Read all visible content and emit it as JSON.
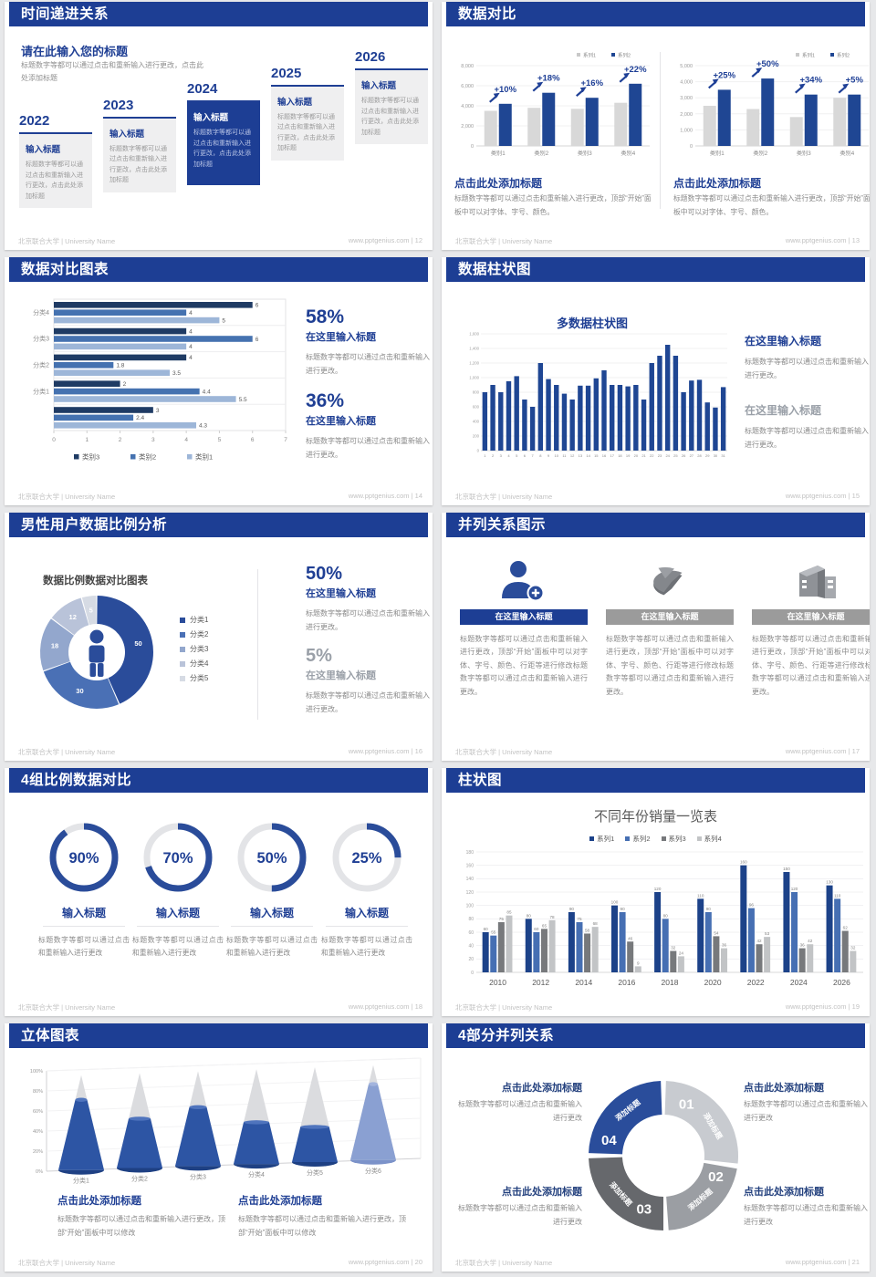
{
  "palette": {
    "header_blue": "#1d3e94",
    "accent_blue": "#1f3f94",
    "bar_dark_blue": "#1f4693",
    "bar_medium_blue": "#4572b0",
    "bar_light_blue": "#9db6d8",
    "bar_gray": "#d8d8d8",
    "text_gray": "#8a8a8a"
  },
  "footer": {
    "left": "北京联合大学 | University Name",
    "site": "www.pptgenius.com",
    "sep": "|"
  },
  "slides": [
    {
      "title": "时间递进关系",
      "page": "12",
      "heading": "请在此输入您的标题",
      "intro": "标题数字等都可以通过点击和重新输入进行更改，点击此处添加标题",
      "items": [
        {
          "year": "2022",
          "title": "输入标题",
          "body": "标题数字等都可以通过点击和重新输入进行更改，点击此处添加标题",
          "highlight": false
        },
        {
          "year": "2023",
          "title": "输入标题",
          "body": "标题数字等都可以通过点击和重新输入进行更改，点击此处添加标题",
          "highlight": false
        },
        {
          "year": "2024",
          "title": "输入标题",
          "body": "标题数字等都可以通过点击和重新输入进行更改，点击此处添加标题",
          "highlight": true
        },
        {
          "year": "2025",
          "title": "输入标题",
          "body": "标题数字等都可以通过点击和重新输入进行更改，点击此处添加标题",
          "highlight": false
        },
        {
          "year": "2026",
          "title": "输入标题",
          "body": "标题数字等都可以通过点击和重新输入进行更改，点击此处添加标题",
          "highlight": false
        }
      ]
    },
    {
      "title": "数据对比",
      "page": "13",
      "chart_data": [
        {
          "type": "bar",
          "legend": [
            "系列1",
            "系列2"
          ],
          "categories": [
            "类别1",
            "类别2",
            "类别3",
            "类别4"
          ],
          "ymax": 8000,
          "yticks": [
            "0",
            "2,000",
            "4,000",
            "6,000",
            "8,000"
          ],
          "series": [
            {
              "name": "系列1",
              "values": [
                3500,
                3800,
                3700,
                4300
              ]
            },
            {
              "name": "系列2",
              "values": [
                4200,
                5300,
                4800,
                6200
              ]
            }
          ],
          "labels": [
            "+10%",
            "+18%",
            "+16%",
            "+22%"
          ]
        },
        {
          "type": "bar",
          "legend": [
            "系列1",
            "系列2"
          ],
          "categories": [
            "类别1",
            "类别2",
            "类别3",
            "类别4"
          ],
          "ymax": 5000,
          "yticks": [
            "0",
            "1,000",
            "2,000",
            "3,000",
            "4,000",
            "5,000"
          ],
          "series": [
            {
              "name": "系列1",
              "values": [
                2500,
                2300,
                1800,
                3000
              ]
            },
            {
              "name": "系列2",
              "values": [
                3500,
                4200,
                3200,
                3200
              ]
            }
          ],
          "labels": [
            "+25%",
            "+50%",
            "+34%",
            "+5%"
          ]
        }
      ],
      "blocks": [
        {
          "heading": "点击此处添加标题",
          "body": "标题数字等都可以通过点击和重新输入进行更改，顶部“开始”面板中可以对字体、字号、颜色。"
        },
        {
          "heading": "点击此处添加标题",
          "body": "标题数字等都可以通过点击和重新输入进行更改，顶部“开始”面板中可以对字体、字号、颜色。"
        }
      ]
    },
    {
      "title": "数据对比图表",
      "page": "14",
      "chart_data": {
        "type": "bar",
        "orientation": "horizontal",
        "categories": [
          "分类4",
          "分类3",
          "分类2",
          "分类1",
          ""
        ],
        "legend": [
          "类别3",
          "类别2",
          "类别1"
        ],
        "values": [
          [
            6,
            4,
            5
          ],
          [
            4,
            6,
            4
          ],
          [
            4,
            1.8,
            3.5
          ],
          [
            2,
            4.4,
            5.5
          ],
          [
            3,
            2.4,
            4.3
          ]
        ],
        "xmax": 7,
        "xticks": [
          "0",
          "1",
          "2",
          "3",
          "4",
          "5",
          "6",
          "7"
        ]
      },
      "stats": [
        {
          "pct": "58%",
          "heading": "在这里输入标题",
          "body": "标题数字等都可以通过点击和重新输入进行更改。"
        },
        {
          "pct": "36%",
          "heading": "在这里输入标题",
          "body": "标题数字等都可以通过点击和重新输入进行更改。"
        }
      ]
    },
    {
      "title": "数据柱状图",
      "page": "15",
      "chart_data": {
        "type": "bar",
        "title": "多数据柱状图",
        "ymax": 1600,
        "yticks": [
          "0",
          "200",
          "400",
          "600",
          "800",
          "1,000",
          "1,200",
          "1,400",
          "1,600"
        ],
        "x_labels": [
          "1",
          "2",
          "3",
          "4",
          "5",
          "6",
          "7",
          "8",
          "9",
          "10",
          "11",
          "12",
          "13",
          "14",
          "15",
          "16",
          "17",
          "18",
          "19",
          "20",
          "21",
          "22",
          "23",
          "24",
          "25",
          "26",
          "27",
          "28",
          "29",
          "30",
          "31"
        ],
        "values": [
          800,
          900,
          800,
          950,
          1020,
          700,
          600,
          1200,
          980,
          900,
          780,
          700,
          890,
          890,
          990,
          1100,
          900,
          900,
          880,
          900,
          700,
          1200,
          1300,
          1450,
          1300,
          800,
          960,
          970,
          660,
          590,
          870
        ]
      },
      "stats": [
        {
          "heading": "在这里输入标题",
          "body": "标题数字等都可以通过点击和重新输入进行更改。"
        },
        {
          "heading": "在这里输入标题",
          "body": "标题数字等都可以通过点击和重新输入进行更改。"
        }
      ]
    },
    {
      "title": "男性用户数据比例分析",
      "page": "16",
      "chart_data": {
        "type": "pie",
        "title": "数据比例数据对比图表",
        "values": [
          50,
          30,
          18,
          12,
          5
        ],
        "legend": [
          "分类1",
          "分类2",
          "分类3",
          "分类4",
          "分类5"
        ],
        "colors": [
          "#2a4c9a",
          "#4a70b5",
          "#93a7cd",
          "#b9c3d9",
          "#d6dbe4"
        ]
      },
      "stats": [
        {
          "pct": "50%",
          "heading": "在这里输入标题",
          "body": "标题数字等都可以通过点击和重新输入进行更改。"
        },
        {
          "pct": "5%",
          "heading": "在这里输入标题",
          "body": "标题数字等都可以通过点击和重新输入进行更改。"
        }
      ]
    },
    {
      "title": "并列关系图示",
      "page": "17",
      "columns": [
        {
          "icon": "person-plus-icon",
          "bar": "在这里输入标题",
          "accent": true,
          "body": "标题数字等都可以通过点击和重新输入进行更改，顶部“开始”面板中可以对字体、字号、颜色、行距等进行修改标题数字等都可以通过点击和重新输入进行更改。"
        },
        {
          "icon": "pie-3d-icon",
          "bar": "在这里输入标题",
          "accent": false,
          "body": "标题数字等都可以通过点击和重新输入进行更改，顶部“开始”面板中可以对字体、字号、颜色、行距等进行修改标题数字等都可以通过点击和重新输入进行更改。"
        },
        {
          "icon": "building-icon",
          "bar": "在这里输入标题",
          "accent": false,
          "body": "标题数字等都可以通过点击和重新输入进行更改，顶部“开始”面板中可以对字体、字号、颜色、行距等进行修改标题数字等都可以通过点击和重新输入进行更改。"
        }
      ]
    },
    {
      "title": "4组比例数据对比",
      "page": "18",
      "rings": [
        {
          "pct": 90,
          "label": "90%",
          "title": "输入标题",
          "body": "标题数字等都可以通过点击和重新输入进行更改"
        },
        {
          "pct": 70,
          "label": "70%",
          "title": "输入标题",
          "body": "标题数字等都可以通过点击和重新输入进行更改"
        },
        {
          "pct": 50,
          "label": "50%",
          "title": "输入标题",
          "body": "标题数字等都可以通过点击和重新输入进行更改"
        },
        {
          "pct": 25,
          "label": "25%",
          "title": "输入标题",
          "body": "标题数字等都可以通过点击和重新输入进行更改"
        }
      ]
    },
    {
      "title": "柱状图",
      "page": "19",
      "chart_data": {
        "type": "bar",
        "title": "不同年份销量一览表",
        "legend": [
          "系列1",
          "系列2",
          "系列3",
          "系列4"
        ],
        "categories": [
          "2010",
          "2012",
          "2014",
          "2016",
          "2018",
          "2020",
          "2022",
          "2024",
          "2026"
        ],
        "series": [
          {
            "name": "系列1",
            "values": [
              60,
              80,
              90,
              100,
              120,
              110,
              160,
              150,
              130
            ]
          },
          {
            "name": "系列2",
            "values": [
              55,
              60,
              75,
              90,
              80,
              90,
              96,
              120,
              110
            ]
          },
          {
            "name": "系列3",
            "values": [
              75,
              65,
              58,
              46,
              32,
              54,
              42,
              36,
              62
            ]
          },
          {
            "name": "系列4",
            "values": [
              85,
              78,
              68,
              9,
              24,
              36,
              53,
              42,
              32
            ]
          }
        ],
        "ymax": 180,
        "yticks": [
          "0",
          "20",
          "40",
          "60",
          "80",
          "100",
          "120",
          "140",
          "160",
          "180"
        ]
      }
    },
    {
      "title": "立体图表",
      "page": "20",
      "chart_data": {
        "type": "bar",
        "style": "3d-cone",
        "categories": [
          "分类1",
          "分类2",
          "分类3",
          "分类4",
          "分类5",
          "分类6"
        ],
        "fill_pct": [
          74,
          52,
          62,
          44,
          37,
          80
        ],
        "yticks": [
          "0%",
          "20%",
          "40%",
          "60%",
          "80%",
          "100%"
        ]
      },
      "blocks": [
        {
          "heading": "点击此处添加标题",
          "body": "标题数字等都可以通过点击和重新输入进行更改，顶部“开始”面板中可以修改"
        },
        {
          "heading": "点击此处添加标题",
          "body": "标题数字等都可以通过点击和重新输入进行更改，顶部“开始”面板中可以修改"
        }
      ]
    },
    {
      "title": "4部分并列关系",
      "page": "21",
      "segments": [
        {
          "num": "01",
          "label": "添加标题"
        },
        {
          "num": "02",
          "label": "添加标题"
        },
        {
          "num": "03",
          "label": "添加标题"
        },
        {
          "num": "04",
          "label": "添加标题"
        }
      ],
      "blocks": [
        {
          "heading": "点击此处添加标题",
          "body": "标题数字等都可以通过点击和重新输入进行更改"
        },
        {
          "heading": "点击此处添加标题",
          "body": "标题数字等都可以通过点击和重新输入进行更改"
        },
        {
          "heading": "点击此处添加标题",
          "body": "标题数字等都可以通过点击和重新输入进行更改"
        },
        {
          "heading": "点击此处添加标题",
          "body": "标题数字等都可以通过点击和重新输入进行更改"
        }
      ]
    }
  ]
}
